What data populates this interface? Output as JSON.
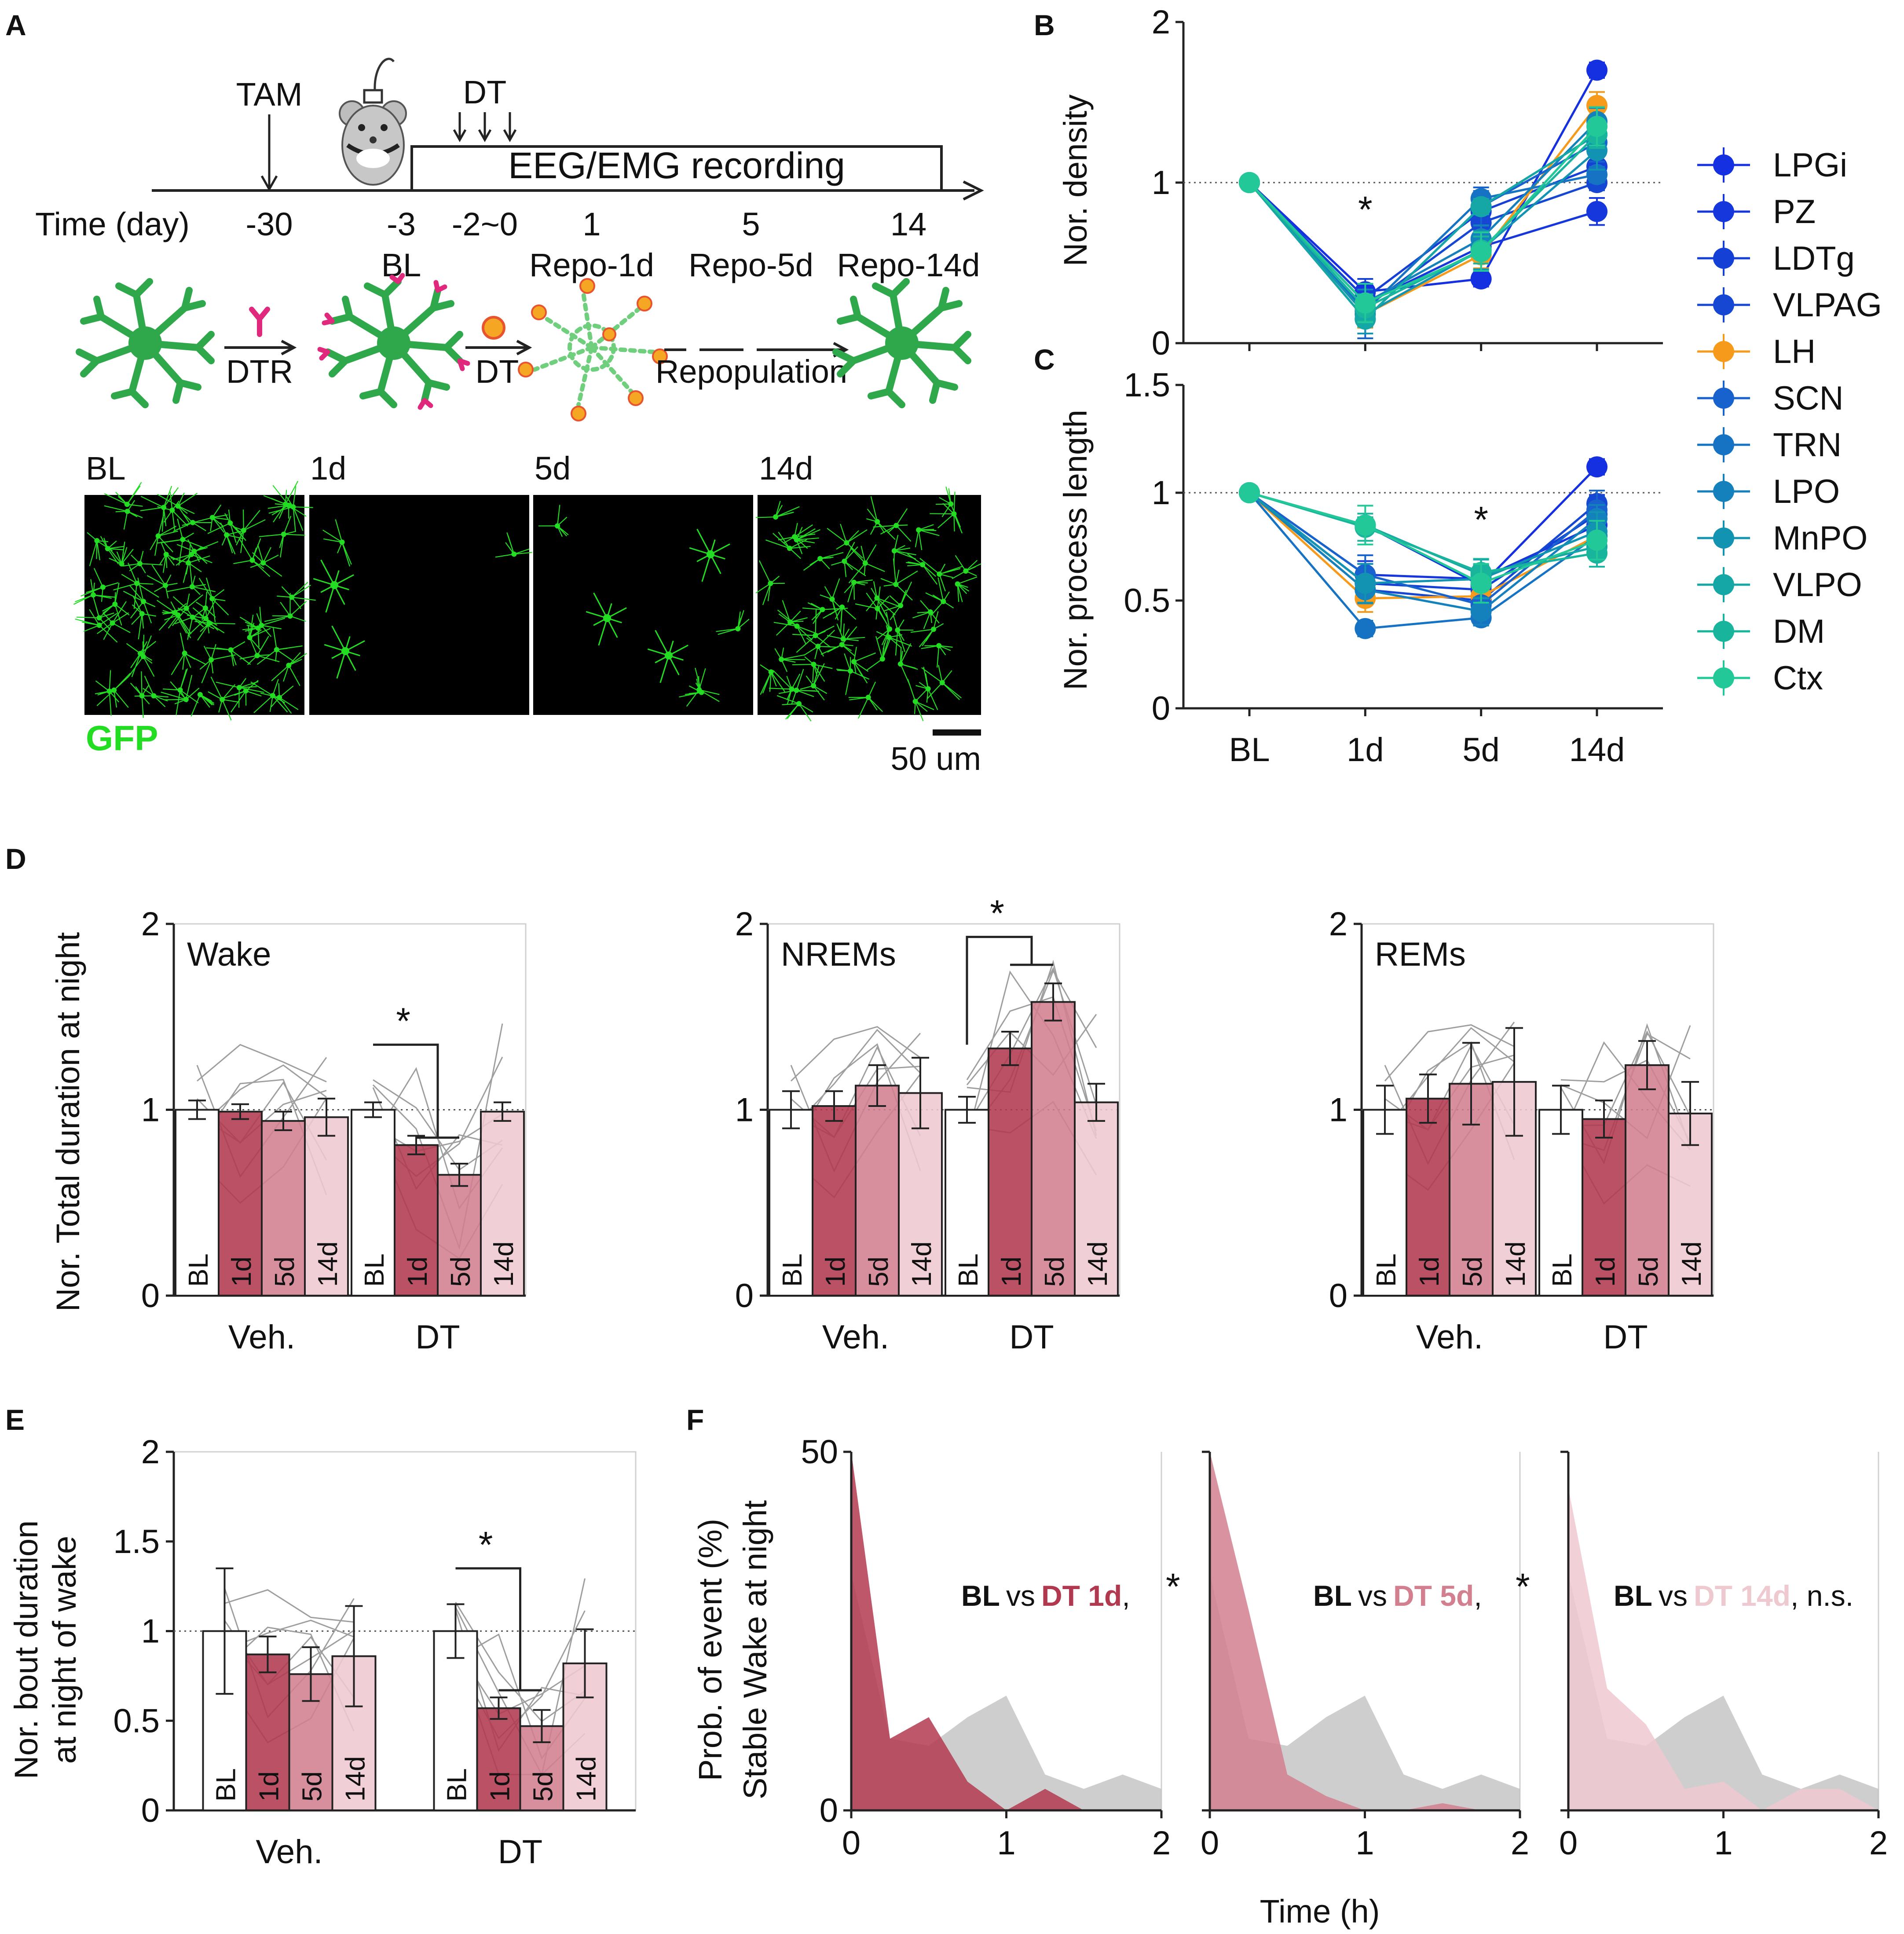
{
  "colors": {
    "bl": "#ffffff",
    "d1": "#b1394f",
    "d5": "#d2808f",
    "d14": "#eec9d0",
    "gray": "#9e9e9e",
    "gfp": "#22dd22",
    "lh": "#f59a1b",
    "region_palette": [
      "#1530e0",
      "#1537dc",
      "#1540d6",
      "#1547d2",
      "#f59a1b",
      "#1762cc",
      "#1673c4",
      "#1481bc",
      "#1393b2",
      "#15a6a6",
      "#18b59c",
      "#22c898"
    ]
  },
  "panelA": {
    "panel_label": "A",
    "tam_label": "TAM",
    "dt_label": "DT",
    "recording_label": "EEG/EMG recording",
    "time_label": "Time (day)",
    "days": [
      "-30",
      "-3",
      "-2~0",
      "1",
      "5",
      "14"
    ],
    "phases": [
      "BL",
      "Repo-1d",
      "Repo-5d",
      "Repo-14d"
    ],
    "dtr_label": "DTR",
    "dt2_label": "DT",
    "repop_label": "Repopulation",
    "img_labels": [
      "BL",
      "1d",
      "5d",
      "14d"
    ],
    "gfp_label": "GFP",
    "scale_label": "50 um"
  },
  "chart_data": [
    {
      "id": "B",
      "panel_label": "B",
      "type": "line",
      "ylabel": "Nor. density",
      "ylim": [
        0,
        2
      ],
      "yticks": [
        "0",
        "1",
        "2"
      ],
      "categories": [
        "BL",
        "1d",
        "5d",
        "14d"
      ],
      "reference_line": 1,
      "significance": [
        {
          "at": "1d",
          "label": "*"
        }
      ],
      "series": [
        {
          "name": "LPGi",
          "values": [
            1.0,
            0.32,
            0.4,
            1.7
          ]
        },
        {
          "name": "PZ",
          "values": [
            1.0,
            0.25,
            0.6,
            0.82
          ]
        },
        {
          "name": "LDTg",
          "values": [
            1.0,
            0.28,
            0.82,
            1.1
          ]
        },
        {
          "name": "VLPAG",
          "values": [
            1.0,
            0.22,
            0.75,
            1.0
          ]
        },
        {
          "name": "LH",
          "values": [
            1.0,
            0.18,
            0.55,
            1.48
          ]
        },
        {
          "name": "SCN",
          "values": [
            1.0,
            0.15,
            0.85,
            1.25
          ]
        },
        {
          "name": "TRN",
          "values": [
            1.0,
            0.2,
            0.9,
            1.05
          ]
        },
        {
          "name": "LPO",
          "values": [
            1.0,
            0.25,
            0.65,
            1.38
          ]
        },
        {
          "name": "MnPO",
          "values": [
            1.0,
            0.18,
            0.58,
            1.2
          ]
        },
        {
          "name": "VLPO",
          "values": [
            1.0,
            0.15,
            0.85,
            1.3
          ]
        },
        {
          "name": "DM",
          "values": [
            1.0,
            0.22,
            0.58,
            1.3
          ]
        },
        {
          "name": "Ctx",
          "values": [
            1.0,
            0.25,
            0.57,
            1.35
          ]
        }
      ]
    },
    {
      "id": "C",
      "panel_label": "C",
      "type": "line",
      "ylabel": "Nor. process length",
      "ylim": [
        0,
        1.5
      ],
      "yticks": [
        "0",
        "0.5",
        "1",
        "1.5"
      ],
      "categories": [
        "BL",
        "1d",
        "5d",
        "14d"
      ],
      "reference_line": 1,
      "significance": [
        {
          "at": "5d",
          "label": "*"
        }
      ],
      "series": [
        {
          "name": "LPGi",
          "values": [
            1.0,
            0.85,
            0.57,
            1.12
          ]
        },
        {
          "name": "PZ",
          "values": [
            1.0,
            0.62,
            0.6,
            0.85
          ]
        },
        {
          "name": "LDTg",
          "values": [
            1.0,
            0.58,
            0.55,
            0.9
          ]
        },
        {
          "name": "VLPAG",
          "values": [
            1.0,
            0.55,
            0.5,
            0.95
          ]
        },
        {
          "name": "LH",
          "values": [
            1.0,
            0.51,
            0.52,
            0.8
          ]
        },
        {
          "name": "SCN",
          "values": [
            1.0,
            0.62,
            0.48,
            0.92
          ]
        },
        {
          "name": "TRN",
          "values": [
            1.0,
            0.37,
            0.42,
            0.8
          ]
        },
        {
          "name": "LPO",
          "values": [
            1.0,
            0.55,
            0.45,
            0.88
          ]
        },
        {
          "name": "MnPO",
          "values": [
            1.0,
            0.58,
            0.6,
            0.82
          ]
        },
        {
          "name": "VLPO",
          "values": [
            1.0,
            0.85,
            0.62,
            0.75
          ]
        },
        {
          "name": "DM",
          "values": [
            1.0,
            0.84,
            0.63,
            0.72
          ]
        },
        {
          "name": "Ctx",
          "values": [
            1.0,
            0.85,
            0.58,
            0.78
          ]
        }
      ],
      "xticks": [
        "BL",
        "1d",
        "5d",
        "14d"
      ]
    },
    {
      "id": "D",
      "panel_label": "D",
      "type": "bar",
      "ylabel": "Nor. Total duration at night",
      "ylim": [
        0,
        2
      ],
      "yticks": [
        "0",
        "1",
        "2"
      ],
      "group_labels": [
        "Veh.",
        "DT"
      ],
      "bar_labels": [
        "BL",
        "1d",
        "5d",
        "14d"
      ],
      "subplots": [
        {
          "title": "Wake",
          "values": [
            [
              1.0,
              0.99,
              0.94,
              0.96
            ],
            [
              1.0,
              0.81,
              0.65,
              0.99
            ]
          ],
          "errors": [
            [
              0.05,
              0.04,
              0.05,
              0.1
            ],
            [
              0.04,
              0.05,
              0.06,
              0.05
            ]
          ],
          "significance": "*"
        },
        {
          "title": "NREMs",
          "values": [
            [
              1.0,
              1.02,
              1.13,
              1.09
            ],
            [
              1.0,
              1.33,
              1.58,
              1.04
            ]
          ],
          "errors": [
            [
              0.1,
              0.08,
              0.11,
              0.19
            ],
            [
              0.07,
              0.09,
              0.1,
              0.1
            ]
          ],
          "significance": "*"
        },
        {
          "title": "REMs",
          "values": [
            [
              1.0,
              1.06,
              1.14,
              1.15
            ],
            [
              1.0,
              0.95,
              1.24,
              0.98
            ]
          ],
          "errors": [
            [
              0.13,
              0.13,
              0.22,
              0.29
            ],
            [
              0.13,
              0.1,
              0.13,
              0.17
            ]
          ],
          "significance": ""
        }
      ]
    },
    {
      "id": "E",
      "panel_label": "E",
      "type": "bar",
      "ylabel": [
        "Nor. bout duration",
        "at night of wake"
      ],
      "ylim": [
        0,
        2
      ],
      "yticks": [
        "0",
        "0.5",
        "1",
        "1.5",
        "2"
      ],
      "group_labels": [
        "Veh.",
        "DT"
      ],
      "bar_labels": [
        "BL",
        "1d",
        "5d",
        "14d"
      ],
      "values": [
        [
          1.0,
          0.87,
          0.76,
          0.86
        ],
        [
          1.0,
          0.57,
          0.47,
          0.82
        ]
      ],
      "errors": [
        [
          0.35,
          0.1,
          0.15,
          0.28
        ],
        [
          0.15,
          0.06,
          0.09,
          0.19
        ]
      ],
      "significance": "*"
    },
    {
      "id": "F",
      "panel_label": "F",
      "type": "area",
      "ylabel": [
        "Prob. of event (%)",
        "Stable Wake at night"
      ],
      "xlabel": "Time (h)",
      "ylim": [
        0,
        50
      ],
      "yticks": [
        "0",
        "50"
      ],
      "xticks": [
        "0",
        "1",
        "2"
      ],
      "x": [
        0,
        0.25,
        0.5,
        0.75,
        1.0,
        1.25,
        1.5,
        1.75,
        2.0
      ],
      "baseline": [
        33,
        10,
        9,
        13,
        16,
        5,
        3,
        5,
        3
      ],
      "subplots": [
        {
          "compare_bl": "BL",
          "compare_vs": "vs",
          "compare_dt": "DT 1d",
          "stat": ",",
          "star": "*",
          "values": [
            50,
            10,
            13,
            4,
            0,
            3,
            0,
            0,
            0
          ]
        },
        {
          "compare_bl": "BL",
          "compare_vs": "vs",
          "compare_dt": "DT 5d",
          "stat": ",",
          "star": "*",
          "values": [
            50,
            28,
            5,
            2,
            0,
            0,
            1,
            0,
            0
          ]
        },
        {
          "compare_bl": "BL",
          "compare_vs": "vs",
          "compare_dt": "DT 14d",
          "stat": ", n.s.",
          "star": "",
          "values": [
            45,
            17,
            12,
            3,
            4,
            0,
            3,
            3,
            0
          ]
        }
      ]
    }
  ]
}
